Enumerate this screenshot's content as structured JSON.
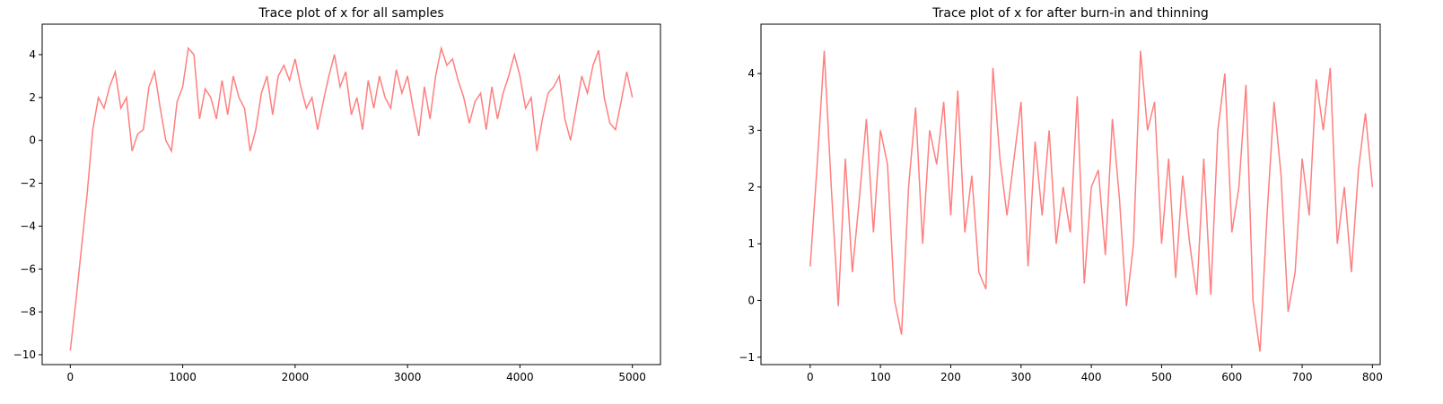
{
  "chart_data": [
    {
      "type": "line",
      "title": "Trace plot of x for all samples",
      "color": "#ff7f7f",
      "x": [
        0,
        50,
        100,
        150,
        200,
        250,
        300,
        350,
        400,
        450,
        500,
        550,
        600,
        650,
        700,
        750,
        800,
        850,
        900,
        950,
        1000,
        1050,
        1100,
        1150,
        1200,
        1250,
        1300,
        1350,
        1400,
        1450,
        1500,
        1550,
        1600,
        1650,
        1700,
        1750,
        1800,
        1850,
        1900,
        1950,
        2000,
        2050,
        2100,
        2150,
        2200,
        2250,
        2300,
        2350,
        2400,
        2450,
        2500,
        2550,
        2600,
        2650,
        2700,
        2750,
        2800,
        2850,
        2900,
        2950,
        3000,
        3050,
        3100,
        3150,
        3200,
        3250,
        3300,
        3350,
        3400,
        3450,
        3500,
        3550,
        3600,
        3650,
        3700,
        3750,
        3800,
        3850,
        3900,
        3950,
        4000,
        4050,
        4100,
        4150,
        4200,
        4250,
        4300,
        4350,
        4400,
        4450,
        4500,
        4550,
        4600,
        4650,
        4700,
        4750,
        4800,
        4850,
        4900,
        4950,
        5000
      ],
      "values": [
        -9.8,
        -7.5,
        -5.0,
        -2.5,
        0.5,
        2.0,
        1.5,
        2.5,
        3.2,
        1.5,
        2.0,
        -0.5,
        0.3,
        0.5,
        2.5,
        3.2,
        1.5,
        0.0,
        -0.5,
        1.8,
        2.5,
        4.3,
        4.0,
        1.0,
        2.4,
        2.0,
        1.0,
        2.8,
        1.2,
        3.0,
        2.0,
        1.5,
        -0.5,
        0.5,
        2.2,
        3.0,
        1.2,
        3.0,
        3.5,
        2.8,
        3.8,
        2.5,
        1.5,
        2.0,
        0.5,
        1.8,
        3.0,
        4.0,
        2.5,
        3.2,
        1.2,
        2.0,
        0.5,
        2.8,
        1.5,
        3.0,
        2.0,
        1.5,
        3.3,
        2.2,
        3.0,
        1.5,
        0.2,
        2.5,
        1.0,
        3.0,
        4.3,
        3.5,
        3.8,
        2.8,
        2.0,
        0.8,
        1.8,
        2.2,
        0.5,
        2.5,
        1.0,
        2.2,
        3.0,
        4.0,
        3.0,
        1.5,
        2.0,
        -0.5,
        1.0,
        2.2,
        2.5,
        3.0,
        1.0,
        0.0,
        1.5,
        3.0,
        2.2,
        3.5,
        4.2,
        2.0,
        0.8,
        0.5,
        1.8,
        3.2,
        2.0
      ],
      "xlim": [
        -250,
        5250
      ],
      "ylim": [
        -10.46,
        5.42
      ],
      "xticks": [
        0,
        1000,
        2000,
        3000,
        4000,
        5000
      ],
      "yticks": [
        {
          "value": -10,
          "label": "−10"
        },
        {
          "value": -8,
          "label": "−8"
        },
        {
          "value": -6,
          "label": "−6"
        },
        {
          "value": -4,
          "label": "−4"
        },
        {
          "value": -2,
          "label": "−2"
        },
        0,
        2,
        4
      ]
    },
    {
      "type": "line",
      "title": "Trace plot of x for after burn-in and thinning",
      "color": "#ff7f7f",
      "x": [
        0,
        10,
        20,
        30,
        40,
        50,
        60,
        70,
        80,
        90,
        100,
        110,
        120,
        130,
        140,
        150,
        160,
        170,
        180,
        190,
        200,
        210,
        220,
        230,
        240,
        250,
        260,
        270,
        280,
        290,
        300,
        310,
        320,
        330,
        340,
        350,
        360,
        370,
        380,
        390,
        400,
        410,
        420,
        430,
        440,
        450,
        460,
        470,
        480,
        490,
        500,
        510,
        520,
        530,
        540,
        550,
        560,
        570,
        580,
        590,
        600,
        610,
        620,
        630,
        640,
        650,
        660,
        670,
        680,
        690,
        700,
        710,
        720,
        730,
        740,
        750,
        760,
        770,
        780,
        790,
        800
      ],
      "values": [
        0.6,
        2.4,
        4.4,
        2.0,
        -0.1,
        2.5,
        0.5,
        1.8,
        3.2,
        1.2,
        3.0,
        2.4,
        0.0,
        -0.6,
        2.0,
        3.4,
        1.0,
        3.0,
        2.4,
        3.5,
        1.5,
        3.7,
        1.2,
        2.2,
        0.5,
        0.2,
        4.1,
        2.5,
        1.5,
        2.5,
        3.5,
        0.6,
        2.8,
        1.5,
        3.0,
        1.0,
        2.0,
        1.2,
        3.6,
        0.3,
        2.0,
        2.3,
        0.8,
        3.2,
        1.8,
        -0.1,
        1.0,
        4.4,
        3.0,
        3.5,
        1.0,
        2.5,
        0.4,
        2.2,
        1.0,
        0.1,
        2.5,
        0.1,
        3.0,
        4.0,
        1.2,
        2.0,
        3.8,
        0.0,
        -0.9,
        1.5,
        3.5,
        2.2,
        -0.2,
        0.5,
        2.5,
        1.5,
        3.9,
        3.0,
        4.1,
        1.0,
        2.0,
        0.5,
        2.3,
        3.3,
        2.0
      ],
      "xlim": [
        -70,
        811
      ],
      "ylim": [
        -1.13,
        4.87
      ],
      "xticks": [
        0,
        100,
        200,
        300,
        400,
        500,
        600,
        700,
        800
      ],
      "yticks": [
        {
          "value": -1,
          "label": "−1"
        },
        0,
        1,
        2,
        3,
        4
      ]
    }
  ]
}
